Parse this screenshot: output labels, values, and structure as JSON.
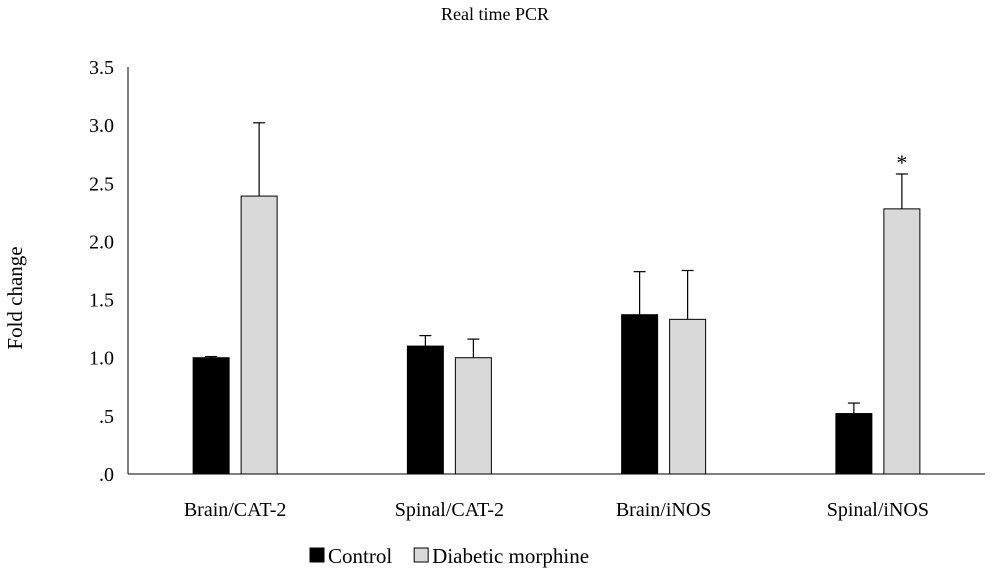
{
  "chart_data": {
    "type": "bar",
    "title": "Real time PCR",
    "ylabel": "Fold change",
    "xlabel": "",
    "categories": [
      "Brain/CAT-2",
      "Spinal/CAT-2",
      "Brain/iNOS",
      "Spinal/iNOS"
    ],
    "ylim": [
      0,
      3.5
    ],
    "yticks": [
      0,
      0.5,
      1.0,
      1.5,
      2.0,
      2.5,
      3.0,
      3.5
    ],
    "ytick_labels": [
      ".0",
      ".5",
      "1.0",
      "1.5",
      "2.0",
      "2.5",
      "3.0",
      "3.5"
    ],
    "grid": false,
    "legend_position": "bottom",
    "series": [
      {
        "name": "Control",
        "color": "#000000",
        "values": [
          1.0,
          1.1,
          1.37,
          0.52
        ],
        "errors": [
          0.01,
          0.09,
          0.37,
          0.09
        ]
      },
      {
        "name": "Diabetic morphine",
        "color": "#d9d9d9",
        "values": [
          2.39,
          1.0,
          1.33,
          2.28
        ],
        "errors": [
          0.63,
          0.16,
          0.42,
          0.3
        ]
      }
    ],
    "annotations": [
      {
        "text": "*",
        "category": 3,
        "series": 1
      }
    ]
  }
}
